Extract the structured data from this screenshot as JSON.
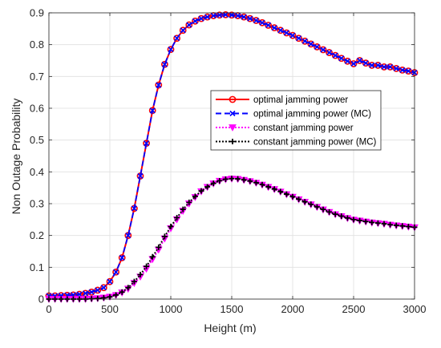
{
  "chart_data": {
    "type": "line",
    "xlabel": "Height (m)",
    "ylabel": "Non Outage Probability",
    "xlim": [
      0,
      3000
    ],
    "ylim": [
      0,
      0.9
    ],
    "xticks": [
      0,
      500,
      1000,
      1500,
      2000,
      2500,
      3000
    ],
    "yticks": [
      0,
      0.1,
      0.2,
      0.3,
      0.4,
      0.5,
      0.6,
      0.7,
      0.8,
      0.9
    ],
    "xtick_labels": [
      "0",
      "500",
      "1000",
      "1500",
      "2000",
      "2500",
      "3000"
    ],
    "ytick_labels": [
      "0",
      "0.1",
      "0.2",
      "0.3",
      "0.4",
      "0.5",
      "0.6",
      "0.7",
      "0.8",
      "0.9"
    ],
    "grid": true,
    "legend_position": "center-right",
    "x": [
      0,
      50,
      100,
      150,
      200,
      250,
      300,
      350,
      400,
      450,
      500,
      550,
      600,
      650,
      700,
      750,
      800,
      850,
      900,
      950,
      1000,
      1050,
      1100,
      1150,
      1200,
      1250,
      1300,
      1350,
      1400,
      1450,
      1500,
      1550,
      1600,
      1650,
      1700,
      1750,
      1800,
      1850,
      1900,
      1950,
      2000,
      2050,
      2100,
      2150,
      2200,
      2250,
      2300,
      2350,
      2400,
      2450,
      2500,
      2550,
      2600,
      2650,
      2700,
      2750,
      2800,
      2850,
      2900,
      2950,
      3000
    ],
    "series": [
      {
        "name": "optimal jamming power",
        "color": "#ff0000",
        "line": "solid",
        "marker": "circle",
        "values": [
          0.01,
          0.01,
          0.011,
          0.012,
          0.013,
          0.015,
          0.018,
          0.022,
          0.028,
          0.036,
          0.055,
          0.085,
          0.13,
          0.2,
          0.285,
          0.387,
          0.49,
          0.593,
          0.673,
          0.738,
          0.785,
          0.82,
          0.845,
          0.862,
          0.874,
          0.882,
          0.887,
          0.891,
          0.893,
          0.894,
          0.893,
          0.891,
          0.887,
          0.882,
          0.876,
          0.869,
          0.861,
          0.853,
          0.845,
          0.837,
          0.829,
          0.82,
          0.811,
          0.802,
          0.793,
          0.784,
          0.775,
          0.766,
          0.757,
          0.748,
          0.74,
          0.75,
          0.742,
          0.735,
          0.735,
          0.73,
          0.73,
          0.725,
          0.72,
          0.717,
          0.712
        ]
      },
      {
        "name": "optimal jamming power (MC)",
        "color": "#0000ff",
        "line": "dashed",
        "marker": "x",
        "values": [
          0.01,
          0.01,
          0.011,
          0.012,
          0.013,
          0.015,
          0.018,
          0.022,
          0.028,
          0.036,
          0.055,
          0.085,
          0.13,
          0.2,
          0.285,
          0.387,
          0.49,
          0.593,
          0.673,
          0.738,
          0.785,
          0.82,
          0.845,
          0.862,
          0.874,
          0.882,
          0.887,
          0.891,
          0.893,
          0.894,
          0.893,
          0.891,
          0.887,
          0.882,
          0.876,
          0.869,
          0.861,
          0.853,
          0.845,
          0.837,
          0.829,
          0.82,
          0.811,
          0.802,
          0.793,
          0.784,
          0.775,
          0.766,
          0.757,
          0.748,
          0.74,
          0.75,
          0.742,
          0.735,
          0.735,
          0.73,
          0.73,
          0.725,
          0.72,
          0.717,
          0.712
        ]
      },
      {
        "name": "constant jamming power",
        "color": "#ff00ff",
        "line": "dotted",
        "marker": "triangle-down",
        "values": [
          0.0,
          0.0,
          0.0,
          0.0,
          0.0,
          0.0,
          0.0,
          0.001,
          0.002,
          0.004,
          0.007,
          0.012,
          0.02,
          0.032,
          0.05,
          0.07,
          0.095,
          0.125,
          0.155,
          0.19,
          0.222,
          0.25,
          0.277,
          0.3,
          0.32,
          0.338,
          0.352,
          0.363,
          0.371,
          0.376,
          0.378,
          0.377,
          0.374,
          0.37,
          0.365,
          0.359,
          0.352,
          0.345,
          0.337,
          0.329,
          0.321,
          0.313,
          0.305,
          0.297,
          0.289,
          0.281,
          0.273,
          0.266,
          0.26,
          0.254,
          0.249,
          0.246,
          0.243,
          0.24,
          0.238,
          0.236,
          0.233,
          0.231,
          0.229,
          0.227,
          0.225
        ]
      },
      {
        "name": "constant jamming power (MC)",
        "color": "#000000",
        "line": "dotted",
        "marker": "plus",
        "values": [
          0.0,
          0.0,
          0.0,
          0.0,
          0.0,
          0.0,
          0.0,
          0.001,
          0.002,
          0.004,
          0.007,
          0.013,
          0.022,
          0.036,
          0.055,
          0.077,
          0.103,
          0.133,
          0.163,
          0.197,
          0.228,
          0.256,
          0.282,
          0.304,
          0.323,
          0.34,
          0.353,
          0.364,
          0.372,
          0.377,
          0.379,
          0.378,
          0.375,
          0.371,
          0.366,
          0.36,
          0.353,
          0.346,
          0.338,
          0.33,
          0.322,
          0.314,
          0.306,
          0.298,
          0.29,
          0.282,
          0.274,
          0.267,
          0.261,
          0.255,
          0.25,
          0.247,
          0.244,
          0.241,
          0.239,
          0.237,
          0.234,
          0.232,
          0.23,
          0.228,
          0.226
        ]
      }
    ]
  }
}
